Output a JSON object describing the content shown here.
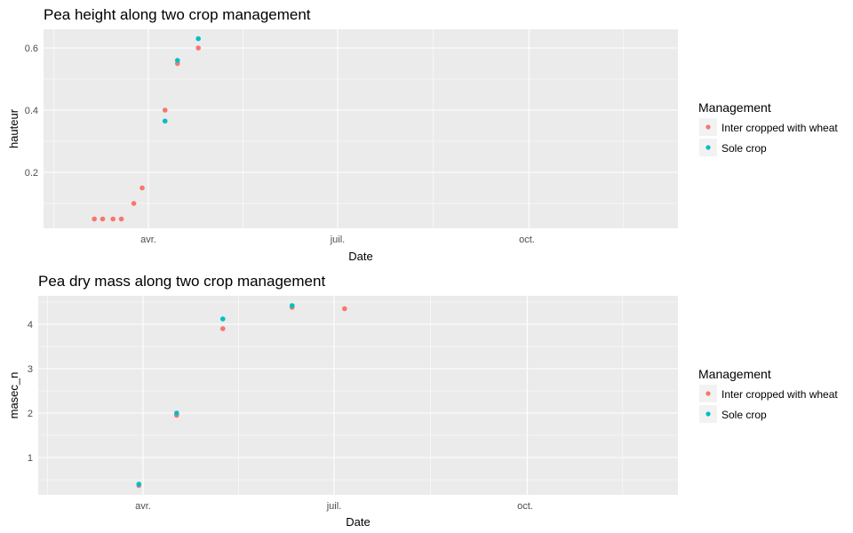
{
  "chart_data": [
    {
      "type": "scatter",
      "title": "Pea height along two crop management",
      "xlabel": "Date",
      "ylabel": "hauteur",
      "x_ticks": [
        "avr.",
        "juil.",
        "oct."
      ],
      "y_ticks": [
        "0.2",
        "0.4",
        "0.6"
      ],
      "ylim": [
        0.025,
        0.65
      ],
      "grid": true,
      "legend": {
        "title": "Management",
        "position": "right",
        "entries": [
          "Inter cropped with wheat",
          "Sole crop"
        ]
      },
      "series": [
        {
          "name": "Inter cropped with wheat",
          "color": "#F8766D",
          "points": [
            {
              "x": "2015-03-06",
              "y": 0.05
            },
            {
              "x": "2015-03-10",
              "y": 0.05
            },
            {
              "x": "2015-03-15",
              "y": 0.05
            },
            {
              "x": "2015-03-19",
              "y": 0.05
            },
            {
              "x": "2015-03-25",
              "y": 0.1
            },
            {
              "x": "2015-03-29",
              "y": 0.15
            },
            {
              "x": "2015-04-09",
              "y": 0.4
            },
            {
              "x": "2015-04-15",
              "y": 0.55
            },
            {
              "x": "2015-04-25",
              "y": 0.6
            }
          ]
        },
        {
          "name": "Sole crop",
          "color": "#00BFC4",
          "points": [
            {
              "x": "2015-04-09",
              "y": 0.365
            },
            {
              "x": "2015-04-15",
              "y": 0.56
            },
            {
              "x": "2015-04-25",
              "y": 0.63
            }
          ]
        }
      ]
    },
    {
      "type": "scatter",
      "title": "Pea dry mass along two crop management",
      "xlabel": "Date",
      "ylabel": "masec_n",
      "x_ticks": [
        "avr.",
        "juil.",
        "oct."
      ],
      "y_ticks": [
        "1",
        "2",
        "3",
        "4"
      ],
      "ylim": [
        0.35,
        4.45
      ],
      "grid": true,
      "legend": {
        "title": "Management",
        "position": "right",
        "entries": [
          "Inter cropped with wheat",
          "Sole crop"
        ]
      },
      "series": [
        {
          "name": "Inter cropped with wheat",
          "color": "#F8766D",
          "points": [
            {
              "x": "2015-03-30",
              "y": 0.37
            },
            {
              "x": "2015-04-17",
              "y": 1.95
            },
            {
              "x": "2015-05-09",
              "y": 3.9
            },
            {
              "x": "2015-06-11",
              "y": 4.38
            },
            {
              "x": "2015-07-06",
              "y": 4.35
            }
          ]
        },
        {
          "name": "Sole crop",
          "color": "#00BFC4",
          "points": [
            {
              "x": "2015-03-30",
              "y": 0.4
            },
            {
              "x": "2015-04-17",
              "y": 2.0
            },
            {
              "x": "2015-05-09",
              "y": 4.12
            },
            {
              "x": "2015-06-11",
              "y": 4.42
            }
          ]
        }
      ]
    }
  ]
}
